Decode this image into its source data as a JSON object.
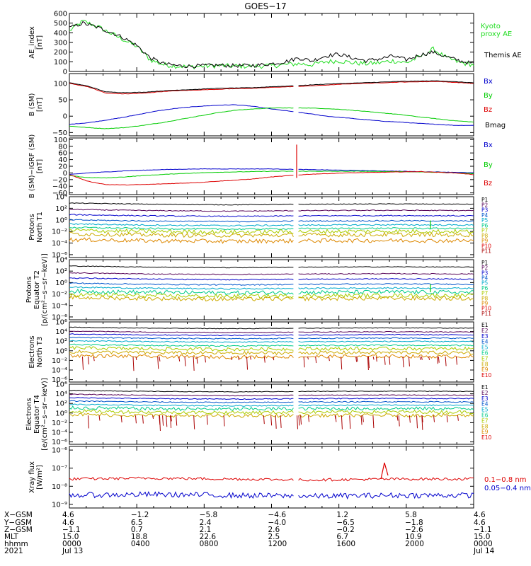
{
  "title": "GOES−17",
  "colors": {
    "black": "#000000",
    "green": "#22dd22",
    "blue": "#0000cc",
    "red": "#dd0000",
    "bright_green": "#00cc00"
  },
  "chart_data": [
    {
      "type": "line",
      "panel": "ae",
      "ylabel": [
        "AE_index",
        "[nT]"
      ],
      "yticks": [
        "600",
        "500",
        "400",
        "300",
        "200",
        "100",
        "0"
      ],
      "ylim": [
        0,
        600
      ],
      "series": [
        {
          "name": "Kyoto\nproxy AE",
          "color": "#22dd22",
          "values": [
            420,
            520,
            470,
            400,
            330,
            260,
            120,
            70,
            55,
            50,
            55,
            60,
            55,
            55,
            55,
            60,
            70,
            80,
            70,
            100,
            110,
            90,
            80,
            90,
            110,
            90,
            150,
            230,
            140,
            90,
            70
          ]
        },
        {
          "name": "Themis AE",
          "color": "#000000",
          "values": [
            450,
            500,
            460,
            410,
            350,
            270,
            140,
            80,
            60,
            55,
            60,
            65,
            60,
            60,
            65,
            80,
            100,
            140,
            110,
            160,
            180,
            140,
            110,
            130,
            160,
            120,
            170,
            200,
            150,
            110,
            80
          ]
        }
      ],
      "legend": [
        "Kyoto",
        "proxy AE",
        "Themis AE"
      ]
    },
    {
      "type": "line",
      "panel": "bsm",
      "ylabel": [
        "B (SM)",
        "[nT]"
      ],
      "yticks": [
        "100",
        "50",
        "0",
        "−50"
      ],
      "ylim": [
        -60,
        130
      ],
      "series": [
        {
          "name": "Bx",
          "color": "#0000cc",
          "values": [
            -25,
            -20,
            -12,
            -3,
            8,
            18,
            25,
            30,
            33,
            35,
            30,
            22,
            15,
            8,
            0,
            -5,
            -10,
            -15,
            -18,
            -22,
            -25,
            -28,
            -28
          ]
        },
        {
          "name": "By",
          "color": "#00cc00",
          "values": [
            -30,
            -35,
            -38,
            -35,
            -28,
            -20,
            -10,
            0,
            10,
            18,
            22,
            25,
            25,
            25,
            23,
            20,
            15,
            10,
            5,
            -2,
            -8,
            -14,
            -18
          ]
        },
        {
          "name": "Bz",
          "color": "#dd0000",
          "values": [
            100,
            90,
            70,
            68,
            70,
            75,
            78,
            80,
            82,
            84,
            85,
            88,
            90,
            92,
            95,
            98,
            100,
            102,
            104,
            105,
            106,
            103,
            100
          ]
        },
        {
          "name": "Bmag",
          "color": "#000000",
          "values": [
            102,
            92,
            74,
            72,
            73,
            77,
            80,
            82,
            85,
            86,
            87,
            90,
            92,
            95,
            98,
            100,
            102,
            104,
            106,
            107,
            108,
            105,
            102
          ]
        }
      ],
      "legend": [
        "Bx",
        "By",
        "Bz",
        "Bmag"
      ]
    },
    {
      "type": "line",
      "panel": "bigrf",
      "ylabel": [
        "B (SM)−IGRF (SM)",
        "[nT]"
      ],
      "yticks": [
        "100",
        "80",
        "60",
        "40",
        "20",
        "0",
        "−20",
        "−40",
        "−60"
      ],
      "ylim": [
        -65,
        105
      ],
      "series": [
        {
          "name": "Bx",
          "color": "#0000cc",
          "values": [
            -5,
            0,
            3,
            6,
            8,
            10,
            11,
            12,
            12,
            12,
            12,
            12,
            11,
            10,
            9,
            8,
            7,
            6,
            5,
            4,
            3,
            2,
            0
          ]
        },
        {
          "name": "By",
          "color": "#00cc00",
          "values": [
            -8,
            -14,
            -15,
            -12,
            -8,
            -5,
            -2,
            0,
            2,
            3,
            4,
            5,
            5,
            5,
            5,
            5,
            5,
            4,
            4,
            3,
            2,
            0,
            -2
          ]
        },
        {
          "name": "Bz",
          "color": "#dd0000",
          "values": [
            -5,
            -25,
            -35,
            -36,
            -35,
            -33,
            -31,
            -29,
            -25,
            -22,
            -18,
            -12,
            -8,
            -4,
            -2,
            0,
            1,
            2,
            3,
            4,
            2,
            0,
            -5
          ]
        }
      ],
      "legend": [
        "Bx",
        "By",
        "Bz"
      ]
    },
    {
      "type": "line",
      "panel": "protons-t1",
      "ylabel": [
        "Protons",
        "North T1"
      ],
      "yticks": [
        "10⁴",
        "10²",
        "10⁰",
        "10⁻²",
        "10⁻⁴",
        "10⁻⁶"
      ],
      "ylim": [
        -6.5,
        4
      ],
      "levels": [
        2.7,
        1.6,
        0.7,
        -0.2,
        -0.9,
        -1.5,
        -2.0,
        -2.6,
        -3.6
      ],
      "legend": [
        "P1",
        "P2",
        "P3",
        "P4",
        "P5",
        "P6",
        "P7",
        "P8",
        "P9",
        "P10",
        "P11"
      ]
    },
    {
      "type": "line",
      "panel": "protons-t2",
      "ylabel": [
        "Protons",
        "Equator T2",
        "[p/(cm²−s−sr−keV)]"
      ],
      "yticks": [
        "10⁴",
        "10²",
        "10⁰",
        "10⁻²",
        "10⁻⁴",
        "10⁻⁶"
      ],
      "ylim": [
        -6.5,
        4
      ],
      "levels": [
        2.7,
        1.5,
        0.6,
        -0.3,
        -1.0,
        -1.7,
        -2.3,
        -2.8
      ],
      "legend": [
        "P1",
        "P2",
        "P3",
        "P4",
        "P5",
        "P6",
        "P7",
        "P8",
        "P9",
        "P10",
        "P11"
      ]
    },
    {
      "type": "line",
      "panel": "electrons-t3",
      "ylabel": [
        "Electrons",
        "North T3"
      ],
      "yticks": [
        "10⁶",
        "10⁴",
        "10²",
        "10⁰",
        "10⁻²",
        "10⁻⁴",
        "10⁻⁶"
      ],
      "ylim": [
        -6.5,
        6
      ],
      "levels": [
        4.7,
        3.9,
        3.3,
        2.6,
        1.9,
        1.1,
        0.4,
        -0.4,
        -1.2
      ],
      "legend": [
        "E1",
        "E2",
        "E3",
        "E4",
        "E5",
        "E6",
        "E7",
        "E8",
        "E9",
        "E10"
      ]
    },
    {
      "type": "line",
      "panel": "electrons-t4",
      "ylabel": [
        "Electrons",
        "Equator T4",
        "[e/(cm²−s−sr−keV)]"
      ],
      "yticks": [
        "10⁶",
        "10⁴",
        "10²",
        "10⁰",
        "10⁻²",
        "10⁻⁴",
        "10⁻⁶"
      ],
      "ylim": [
        -6.5,
        6
      ],
      "levels": [
        4.5,
        3.7,
        3.0,
        2.3,
        1.6,
        0.9,
        0.2,
        -0.5
      ],
      "legend": [
        "E1",
        "E2",
        "E3",
        "E4",
        "E5",
        "E6",
        "E7",
        "E8",
        "E9",
        "E10"
      ]
    },
    {
      "type": "line",
      "panel": "xray",
      "ylabel": [
        "Xray flux",
        "[W/m²]"
      ],
      "yticks": [
        "10⁻⁶",
        "10⁻⁷",
        "10⁻⁸",
        "10⁻⁹"
      ],
      "ylim": [
        -9.2,
        -5.8
      ],
      "series": [
        {
          "name": "0.1−0.8 nm",
          "color": "#dd0000",
          "level": -7.6
        },
        {
          "name": "0.05−0.4 nm",
          "color": "#0000cc",
          "level": -8.5
        }
      ],
      "legend": [
        "0.1−0.8 nm",
        "0.05−0.4 nm"
      ]
    }
  ],
  "footer": {
    "row_labels": [
      "X−GSM",
      "Y−GSM",
      "Z−GSM",
      "MLT",
      "hhmm",
      "2021"
    ],
    "columns": [
      [
        "4.6",
        "4.6",
        "−1.1",
        "15.0",
        "0000",
        "Jul 13"
      ],
      [
        "−1.2",
        "6.5",
        "0.7",
        "18.8",
        "0400",
        ""
      ],
      [
        "−5.8",
        "2.4",
        "2.1",
        "22.6",
        "0800",
        ""
      ],
      [
        "−4.6",
        "−4.0",
        "2.6",
        "2.5",
        "1200",
        ""
      ],
      [
        "1.2",
        "−6.5",
        "−0.2",
        "6.7",
        "1600",
        ""
      ],
      [
        "5.8",
        "−1.8",
        "−2.6",
        "10.9",
        "2000",
        ""
      ],
      [
        "4.6",
        "4.6",
        "−1.1",
        "15.0",
        "0000",
        "Jul 14"
      ]
    ]
  }
}
